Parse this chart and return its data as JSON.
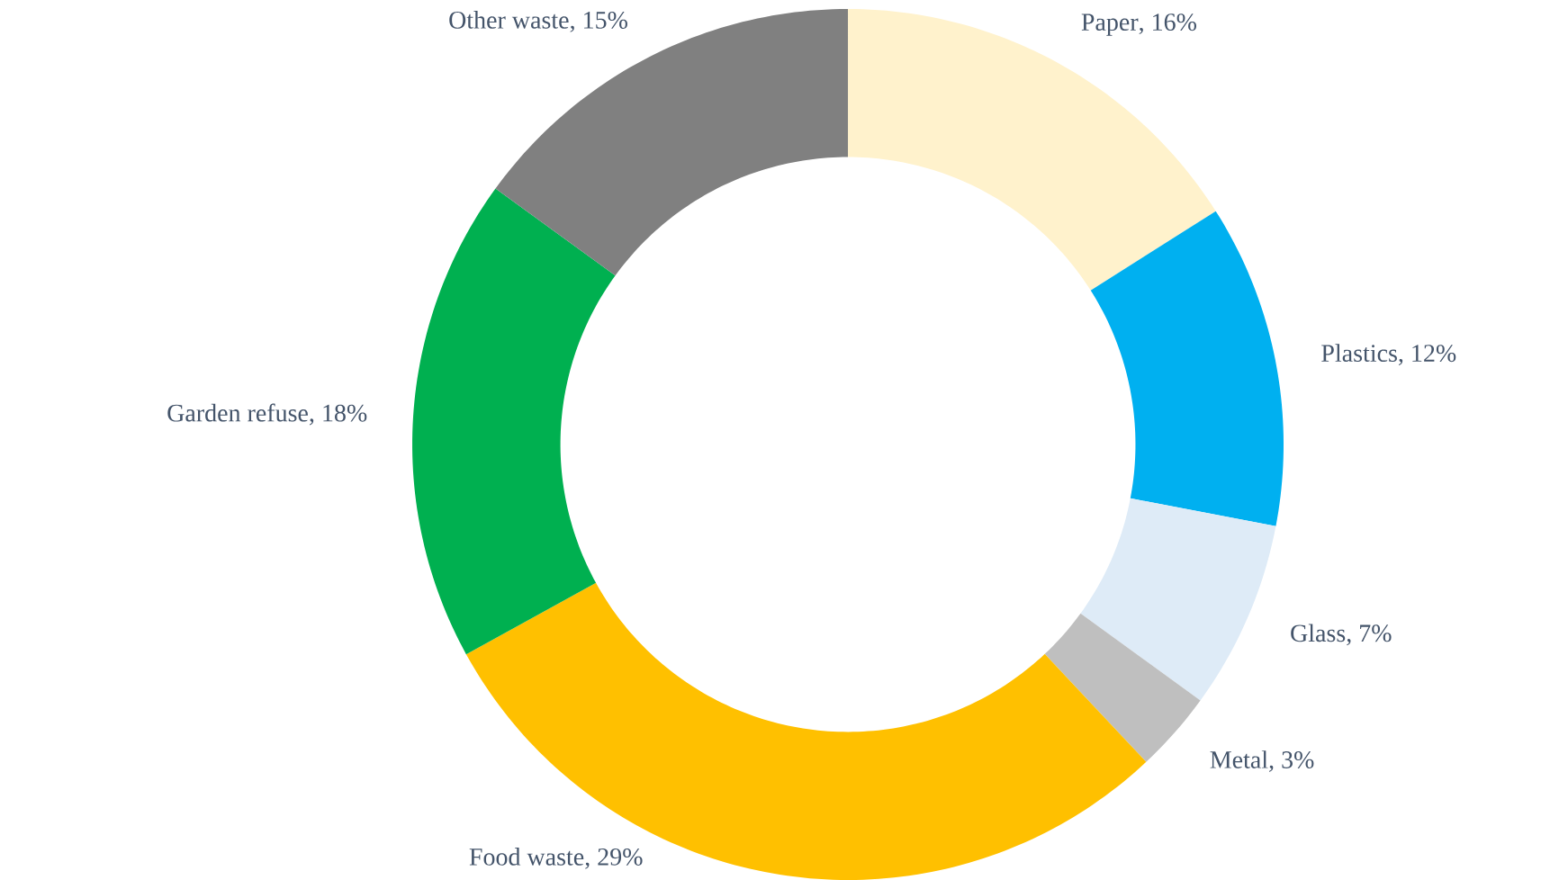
{
  "chart_data": {
    "type": "donut",
    "categories": [
      "Paper",
      "Plastics",
      "Glass",
      "Metal",
      "Food waste",
      "Garden refuse",
      "Other waste"
    ],
    "values": [
      16,
      12,
      7,
      3,
      29,
      18,
      15
    ],
    "value_labels": [
      ", 16%",
      ", 12%",
      ", 7%",
      ", 3%",
      ", 29%",
      ", 18%",
      ", 15%"
    ],
    "colors": [
      "#fff2cc",
      "#00b0f0",
      "#deebf7",
      "#bfbfbf",
      "#ffc000",
      "#00b050",
      "#808080"
    ]
  }
}
